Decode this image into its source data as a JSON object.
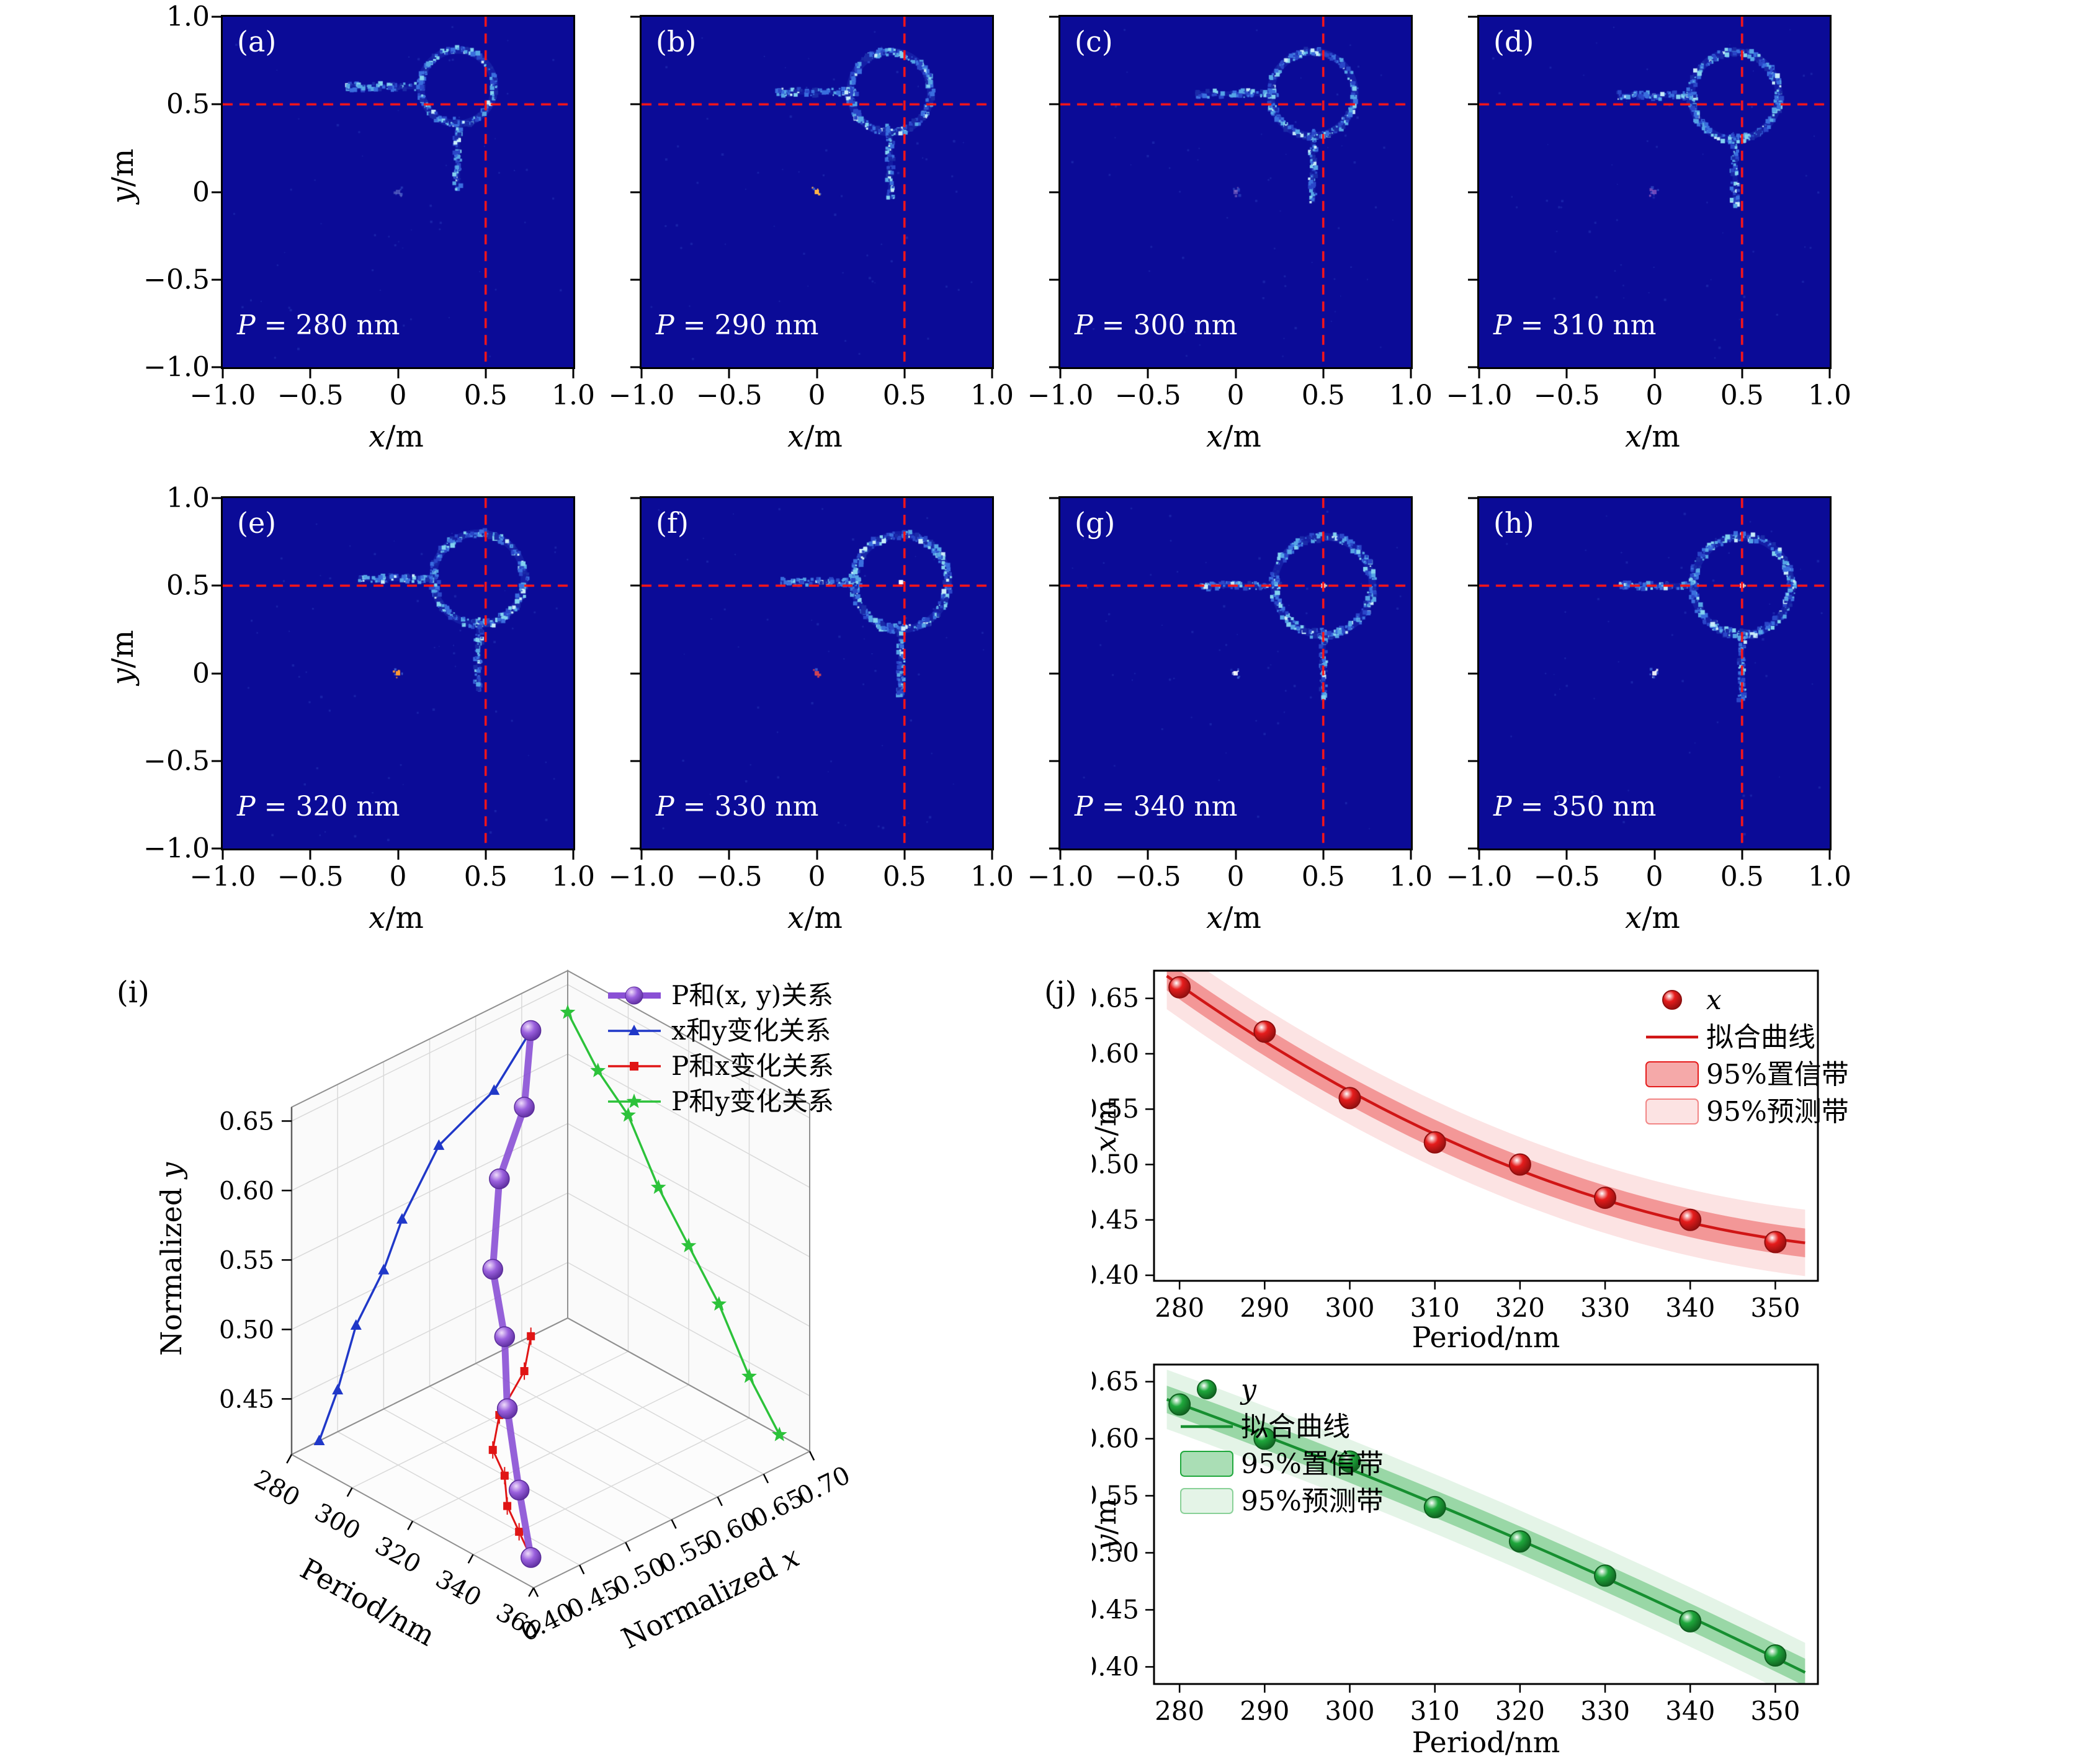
{
  "figure": {
    "background": "#ffffff"
  },
  "heatmap_axis": {
    "x_ticks": [
      -1,
      -0.5,
      0,
      0.5,
      1
    ],
    "x_tick_labels": [
      "−1.0",
      "−0.5",
      "0",
      "0.5",
      "1.0"
    ],
    "y_ticks": [
      1,
      0.5,
      0,
      -0.5,
      -1
    ],
    "y_tick_labels": [
      "1.0",
      "0.5",
      "0",
      "−0.5",
      "−1.0"
    ],
    "xlabel_var": "x",
    "xlabel_rest": "/m",
    "ylabel_var": "y",
    "ylabel_rest": "/m"
  },
  "chart_data": [
    {
      "type": "heatmap",
      "id": "field-maps",
      "background": "#0b0b97",
      "crosshair": {
        "x": 0.5,
        "y": 0.5,
        "color": "#ff1515"
      },
      "xlim": [
        -1,
        1
      ],
      "ylim": [
        -1,
        1
      ],
      "panels": [
        {
          "letter": "(a)",
          "p_var": "P",
          "p_rest": " = 280 nm",
          "period_nm": 280,
          "ring_center": [
            0.34,
            0.6
          ],
          "ring_radius": 0.21,
          "completeness": 0.42,
          "origin_color": "#8090d8",
          "origin_bright": 0.5,
          "center_dot": false,
          "seed": 3
        },
        {
          "letter": "(b)",
          "p_var": "P",
          "p_rest": " = 290 nm",
          "period_nm": 290,
          "ring_center": [
            0.42,
            0.57
          ],
          "ring_radius": 0.23,
          "completeness": 0.55,
          "origin_color": "#ffb347",
          "origin_bright": 1.0,
          "center_dot": false,
          "seed": 7
        },
        {
          "letter": "(c)",
          "p_var": "P",
          "p_rest": " = 300 nm",
          "period_nm": 300,
          "ring_center": [
            0.44,
            0.56
          ],
          "ring_radius": 0.24,
          "completeness": 0.5,
          "origin_color": "#9f7fd0",
          "origin_bright": 0.5,
          "center_dot": false,
          "seed": 11
        },
        {
          "letter": "(d)",
          "p_var": "P",
          "p_rest": " = 310 nm",
          "period_nm": 310,
          "ring_center": [
            0.46,
            0.55
          ],
          "ring_radius": 0.25,
          "completeness": 0.6,
          "origin_color": "#b06fd0",
          "origin_bright": 0.6,
          "center_dot": false,
          "seed": 13
        },
        {
          "letter": "(e)",
          "p_var": "P",
          "p_rest": " = 320 nm",
          "period_nm": 320,
          "ring_center": [
            0.46,
            0.54
          ],
          "ring_radius": 0.26,
          "completeness": 0.6,
          "origin_color": "#ff9833",
          "origin_bright": 1.0,
          "center_dot": false,
          "seed": 17
        },
        {
          "letter": "(f)",
          "p_var": "P",
          "p_rest": " = 330 nm",
          "period_nm": 330,
          "ring_center": [
            0.48,
            0.52
          ],
          "ring_radius": 0.27,
          "completeness": 0.68,
          "origin_color": "#ff5040",
          "origin_bright": 0.8,
          "center_dot": true,
          "seed": 19
        },
        {
          "letter": "(g)",
          "p_var": "P",
          "p_rest": " = 340 nm",
          "period_nm": 340,
          "ring_center": [
            0.5,
            0.5
          ],
          "ring_radius": 0.28,
          "completeness": 0.7,
          "origin_color": "#ffffff",
          "origin_bright": 0.9,
          "center_dot": true,
          "seed": 23
        },
        {
          "letter": "(h)",
          "p_var": "P",
          "p_rest": " = 350 nm",
          "period_nm": 350,
          "ring_center": [
            0.5,
            0.5
          ],
          "ring_radius": 0.28,
          "completeness": 0.75,
          "origin_color": "#ffffff",
          "origin_bright": 0.9,
          "center_dot": true,
          "seed": 29
        }
      ]
    },
    {
      "type": "scatter3d",
      "id": "panel-i",
      "corner_label": "(i)",
      "axes": {
        "period": {
          "label": "Period/nm",
          "ticks": [
            280,
            300,
            320,
            340,
            360
          ],
          "tick_labels": [
            "280",
            "300",
            "320",
            "340",
            "360"
          ],
          "range": [
            280,
            360
          ]
        },
        "norm_x": {
          "label_prefix": "Normalized ",
          "label_var": "x",
          "ticks": [
            0.4,
            0.45,
            0.5,
            0.55,
            0.6,
            0.65,
            0.7
          ],
          "tick_labels": [
            "0.40",
            "0.45",
            "0.50",
            "0.55",
            "0.60",
            "0.65",
            "0.70"
          ],
          "range": [
            0.4,
            0.7
          ]
        },
        "norm_y": {
          "label_prefix": "Normalized ",
          "label_var": "y",
          "ticks": [
            0.45,
            0.5,
            0.55,
            0.6,
            0.65
          ],
          "tick_labels": [
            "0.45",
            "0.50",
            "0.55",
            "0.60",
            "0.65"
          ],
          "range": [
            0.41,
            0.66
          ]
        }
      },
      "period": [
        280,
        290,
        300,
        310,
        320,
        330,
        340,
        350
      ],
      "norm_x": [
        0.66,
        0.62,
        0.56,
        0.52,
        0.5,
        0.47,
        0.45,
        0.43
      ],
      "norm_y": [
        0.63,
        0.6,
        0.58,
        0.54,
        0.51,
        0.48,
        0.44,
        0.41
      ],
      "legend": [
        {
          "label": "P和(x, y)关系",
          "marker": "sphere",
          "color": "#8a50d5"
        },
        {
          "label": "x和y变化关系",
          "marker": "triangle",
          "color": "#2038c8"
        },
        {
          "label": "P和x变化关系",
          "marker": "square",
          "color": "#e01515"
        },
        {
          "label": "P和y变化关系",
          "marker": "star",
          "color": "#2cc23a"
        }
      ]
    },
    {
      "type": "scatter",
      "id": "panel-j-top",
      "corner_label": "(j)",
      "x": [
        280,
        290,
        300,
        310,
        320,
        330,
        340,
        350
      ],
      "y": [
        0.66,
        0.62,
        0.56,
        0.52,
        0.5,
        0.47,
        0.45,
        0.43
      ],
      "xlabel": "Period/nm",
      "ylabel_var": "x",
      "ylabel_rest": "/m",
      "x_ticks": [
        280,
        290,
        300,
        310,
        320,
        330,
        340,
        350
      ],
      "x_tick_labels": [
        "280",
        "290",
        "300",
        "310",
        "320",
        "330",
        "340",
        "350"
      ],
      "y_ticks": [
        0.4,
        0.45,
        0.5,
        0.55,
        0.6,
        0.65
      ],
      "y_tick_labels": [
        "0.40",
        "0.45",
        "0.50",
        "0.55",
        "0.60",
        "0.65"
      ],
      "xlim": [
        277,
        355
      ],
      "ylim": [
        0.395,
        0.675
      ],
      "color": "#e51c1c",
      "fit_color": "#d01515",
      "point_stroke": "#8f0f0f",
      "conf_halfwidth": 0.013,
      "pred_halfwidth": 0.03,
      "legend": [
        {
          "label": "x",
          "marker": "ball",
          "italic": true
        },
        {
          "label": "拟合曲线",
          "marker": "line"
        },
        {
          "label": "95%置信带",
          "marker": "band-dark"
        },
        {
          "label": "95%预测带",
          "marker": "band-light"
        }
      ]
    },
    {
      "type": "scatter",
      "id": "panel-j-bottom",
      "x": [
        280,
        290,
        300,
        310,
        320,
        330,
        340,
        350
      ],
      "y": [
        0.63,
        0.6,
        0.58,
        0.54,
        0.51,
        0.48,
        0.44,
        0.41
      ],
      "xlabel": "Period/nm",
      "ylabel_var": "y",
      "ylabel_rest": "/m",
      "x_ticks": [
        280,
        290,
        300,
        310,
        320,
        330,
        340,
        350
      ],
      "x_tick_labels": [
        "280",
        "290",
        "300",
        "310",
        "320",
        "330",
        "340",
        "350"
      ],
      "y_ticks": [
        0.4,
        0.45,
        0.5,
        0.55,
        0.6,
        0.65
      ],
      "y_tick_labels": [
        "0.40",
        "0.45",
        "0.50",
        "0.55",
        "0.60",
        "0.65"
      ],
      "xlim": [
        277,
        355
      ],
      "ylim": [
        0.385,
        0.665
      ],
      "color": "#1fa83c",
      "fit_color": "#168f30",
      "point_stroke": "#0f5f1f",
      "conf_halfwidth": 0.012,
      "pred_halfwidth": 0.026,
      "legend": [
        {
          "label": "y",
          "marker": "ball",
          "italic": true
        },
        {
          "label": "拟合曲线",
          "marker": "line"
        },
        {
          "label": "95%置信带",
          "marker": "band-dark"
        },
        {
          "label": "95%预测带",
          "marker": "band-light"
        }
      ]
    }
  ]
}
